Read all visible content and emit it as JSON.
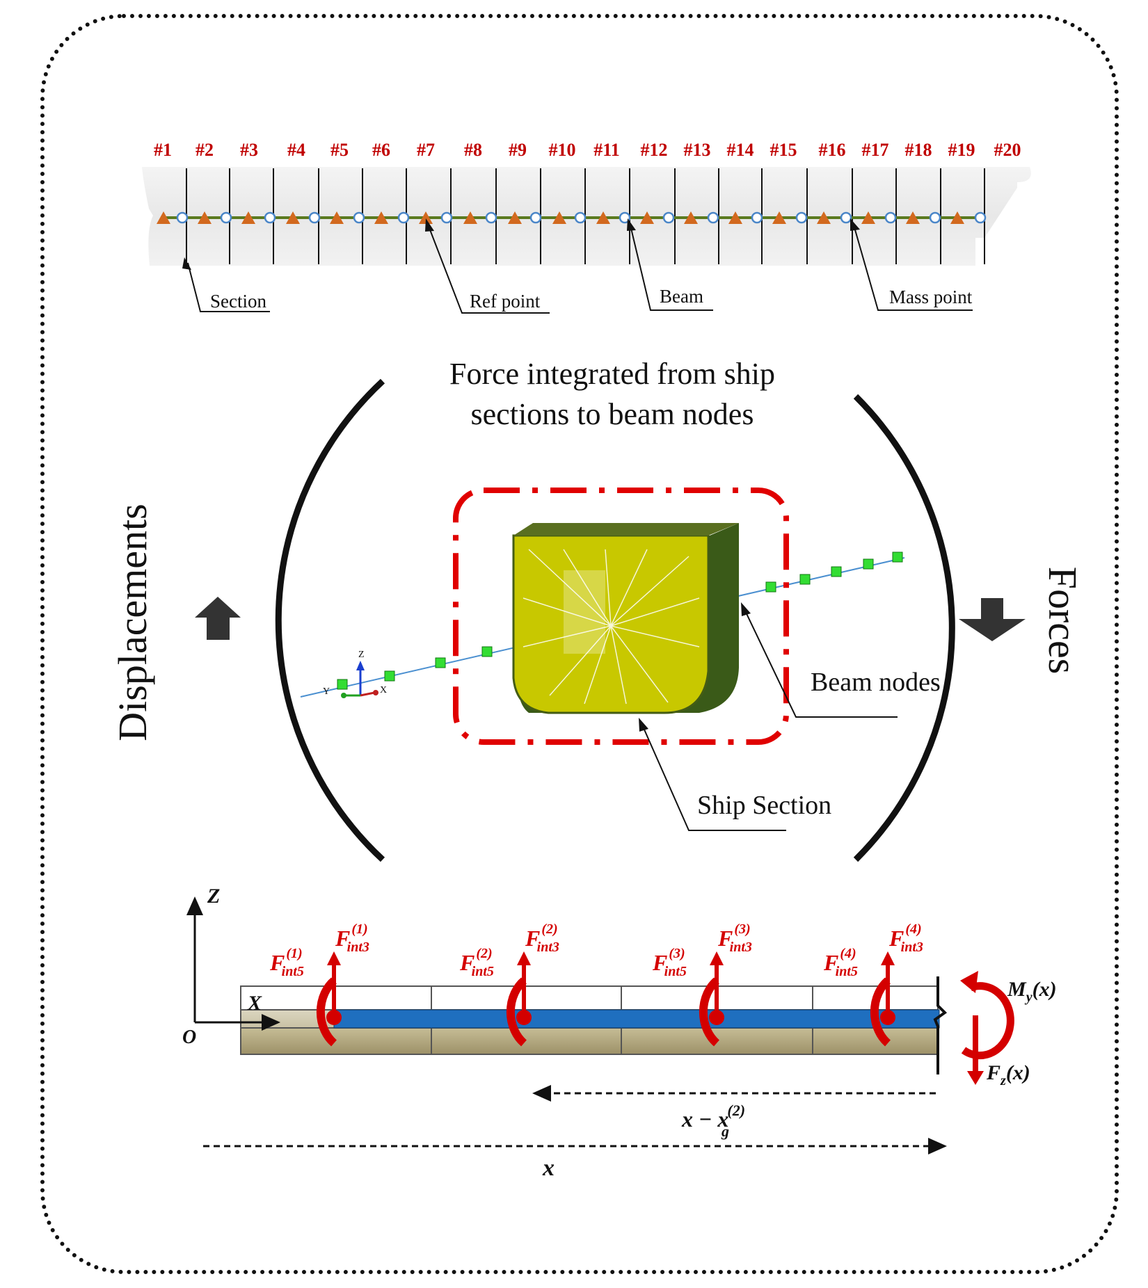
{
  "top_hull": {
    "section_labels": [
      "#1",
      "#2",
      "#3",
      "#4",
      "#5",
      "#6",
      "#7",
      "#8",
      "#9",
      "#10",
      "#11",
      "#12",
      "#13",
      "#14",
      "#15",
      "#16",
      "#17",
      "#18",
      "#19",
      "#20"
    ],
    "callouts": {
      "section": "Section",
      "ref_point": "Ref point",
      "beam": "Beam",
      "mass_point": "Mass point"
    }
  },
  "cycle": {
    "top_text_line1": "Force integrated from ship",
    "top_text_line2": "sections to beam nodes",
    "left_text": "Displacements",
    "right_text": "Forces"
  },
  "middle": {
    "beam_nodes_label": "Beam nodes",
    "ship_section_label": "Ship Section",
    "axes": {
      "z": "Z",
      "y": "Y",
      "x": "X"
    }
  },
  "bottom_beam": {
    "axis_z": "Z",
    "axis_x": "X",
    "origin": "O",
    "f3_labels": [
      {
        "base": "F",
        "sup": "(1)",
        "sub": "int3"
      },
      {
        "base": "F",
        "sup": "(2)",
        "sub": "int3"
      },
      {
        "base": "F",
        "sup": "(3)",
        "sub": "int3"
      },
      {
        "base": "F",
        "sup": "(4)",
        "sub": "int3"
      }
    ],
    "f5_labels": [
      {
        "base": "F",
        "sup": "(1)",
        "sub": "int5"
      },
      {
        "base": "F",
        "sup": "(2)",
        "sub": "int5"
      },
      {
        "base": "F",
        "sup": "(3)",
        "sub": "int5"
      },
      {
        "base": "F",
        "sup": "(4)",
        "sub": "int5"
      }
    ],
    "moment": {
      "base": "M",
      "sub": "y",
      "arg": "(x)"
    },
    "shear": {
      "base": "F",
      "sub": "z",
      "arg": "(x)"
    },
    "dim_short": {
      "base": "x − x",
      "sub": "g",
      "sup": "(2)"
    },
    "dim_long": "x"
  },
  "colors": {
    "section_label": "#c00000",
    "triangle": "#d2691e",
    "beam_line": "#5a7a1f",
    "node_circle": "#4a86c8",
    "force_red": "#d40000",
    "beam_blue": "#1f6fbf",
    "dash_box": "#e00000",
    "node_green": "#33dd33",
    "hull_yellow": "#c8c800"
  },
  "icons": [
    "up-arrow-icon",
    "down-arrow-icon"
  ]
}
